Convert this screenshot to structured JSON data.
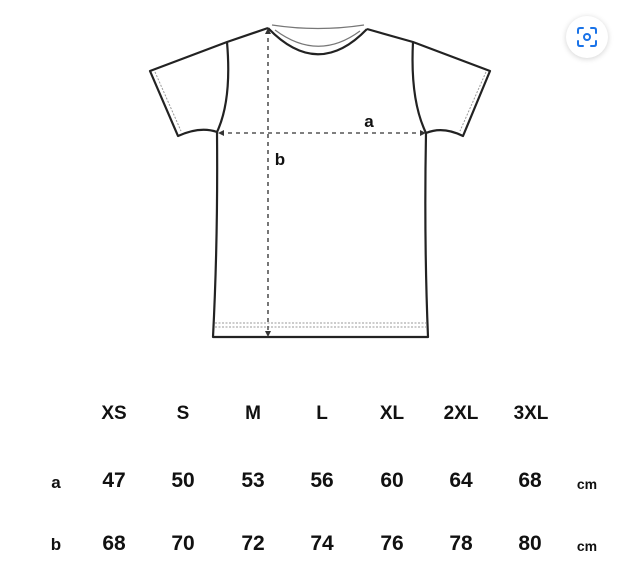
{
  "diagram": {
    "labels": {
      "width": "a",
      "length": "b"
    },
    "icon": "visual-search-lens-icon",
    "accent_color": "#1a73e8"
  },
  "size_table": {
    "sizes": [
      "XS",
      "S",
      "M",
      "L",
      "XL",
      "2XL",
      "3XL"
    ],
    "rows": [
      {
        "label": "a",
        "values": [
          "47",
          "50",
          "53",
          "56",
          "60",
          "64",
          "68"
        ],
        "unit": "cm"
      },
      {
        "label": "b",
        "values": [
          "68",
          "70",
          "72",
          "74",
          "76",
          "78",
          "80"
        ],
        "unit": "cm"
      }
    ]
  }
}
